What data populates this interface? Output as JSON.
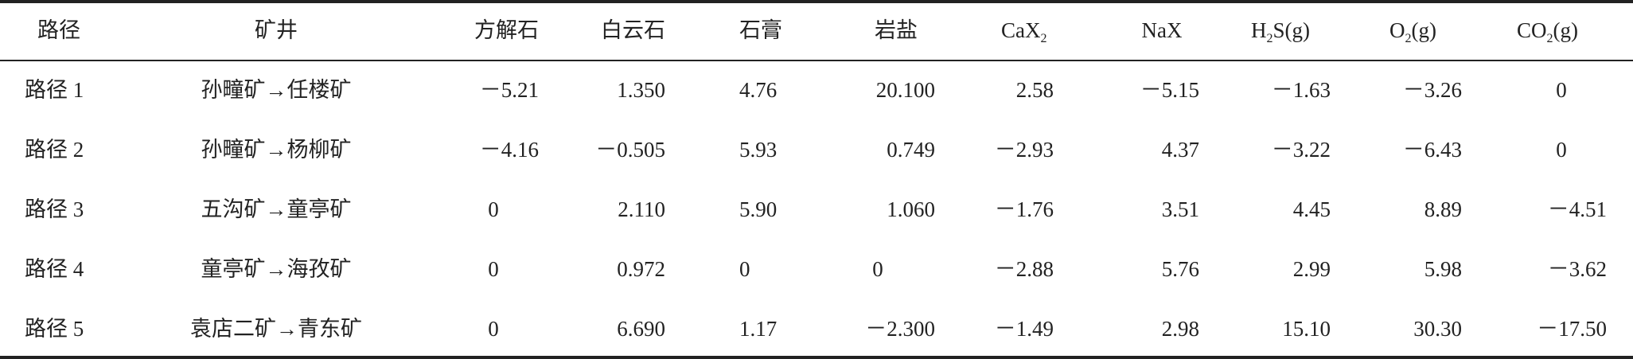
{
  "table": {
    "headers": [
      {
        "main": "路径",
        "sub": "",
        "tail": ""
      },
      {
        "main": "矿井",
        "sub": "",
        "tail": ""
      },
      {
        "main": "方解石",
        "sub": "",
        "tail": ""
      },
      {
        "main": "白云石",
        "sub": "",
        "tail": ""
      },
      {
        "main": "石膏",
        "sub": "",
        "tail": ""
      },
      {
        "main": "岩盐",
        "sub": "",
        "tail": ""
      },
      {
        "main": "CaX",
        "sub": "2",
        "tail": ""
      },
      {
        "main": "NaX",
        "sub": "",
        "tail": ""
      },
      {
        "main": "H",
        "sub": "2",
        "tail": "S(g)"
      },
      {
        "main": "O",
        "sub": "2",
        "tail": "(g)"
      },
      {
        "main": "CO",
        "sub": "2",
        "tail": "(g)"
      }
    ],
    "rows": [
      [
        "路径 1",
        "孙疃矿→任楼矿",
        "－5.21",
        "1.350",
        "4.76",
        "20.100",
        "2.58",
        "－5.15",
        "－1.63",
        "－3.26",
        "0"
      ],
      [
        "路径 2",
        "孙疃矿→杨柳矿",
        "－4.16",
        "－0.505",
        "5.93",
        "0.749",
        "－2.93",
        "4.37",
        "－3.22",
        "－6.43",
        "0"
      ],
      [
        "路径 3",
        "五沟矿→童亭矿",
        "0",
        "2.110",
        "5.90",
        "1.060",
        "－1.76",
        "3.51",
        "4.45",
        "8.89",
        "－4.51"
      ],
      [
        "路径 4",
        "童亭矿→海孜矿",
        "0",
        "0.972",
        "0",
        "0",
        "－2.88",
        "5.76",
        "2.99",
        "5.98",
        "－3.62"
      ],
      [
        "路径 5",
        "袁店二矿→青东矿",
        "0",
        "6.690",
        "1.17",
        "－2.300",
        "－1.49",
        "2.98",
        "15.10",
        "30.30",
        "－17.50"
      ]
    ]
  }
}
